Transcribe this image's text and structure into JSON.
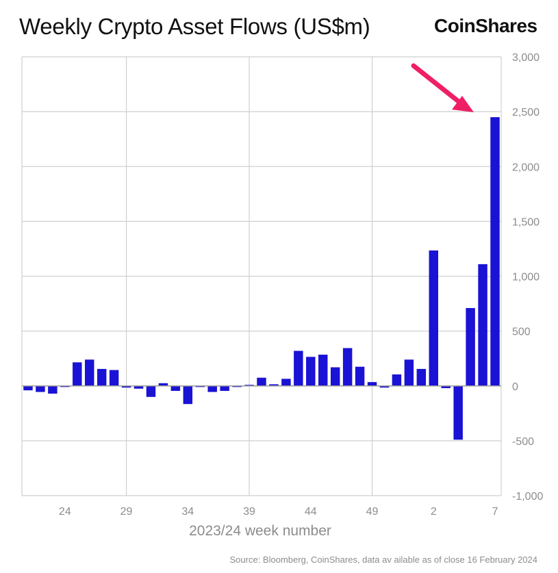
{
  "header": {
    "title": "Weekly Crypto Asset Flows (US$m)",
    "brand": "CoinShares"
  },
  "footer": {
    "source": "Source: Bloomberg, CoinShares, data av ailable as of close 16 February 2024"
  },
  "colors": {
    "bar": "#1a12d4",
    "grid": "#cfcfcf",
    "axis_text": "#8c8c8c",
    "arrow": "#ee1f66"
  },
  "chart_data": {
    "type": "bar",
    "title": "Weekly Crypto Asset Flows (US$m)",
    "xlabel": "2023/24 week number",
    "ylabel": "",
    "ylim": [
      -1000,
      3000
    ],
    "y_ticks": [
      "3,000",
      "2,500",
      "2,000",
      "1,500",
      "1,000",
      "500",
      "0",
      "-500",
      "-1,000"
    ],
    "y_tick_values": [
      3000,
      2500,
      2000,
      1500,
      1000,
      500,
      0,
      -500,
      -1000
    ],
    "x_ticks": [
      "24",
      "29",
      "34",
      "39",
      "44",
      "49",
      "2",
      "7"
    ],
    "x_tick_indices": [
      3,
      8,
      13,
      18,
      23,
      28,
      33,
      38
    ],
    "x_gridline_indices": [
      8.5,
      18.5,
      28.5
    ],
    "y_axis_position": "right",
    "grid": true,
    "annotation": "arrow pointing to latest week",
    "series": [
      {
        "name": "Weekly flows",
        "values": [
          -40,
          -55,
          -70,
          -10,
          215,
          240,
          155,
          145,
          -15,
          -25,
          -100,
          25,
          -45,
          -165,
          -10,
          -55,
          -45,
          -10,
          10,
          75,
          15,
          65,
          320,
          265,
          285,
          170,
          345,
          175,
          35,
          -15,
          105,
          240,
          155,
          1235,
          -20,
          -490,
          710,
          1110,
          2450
        ]
      }
    ]
  }
}
